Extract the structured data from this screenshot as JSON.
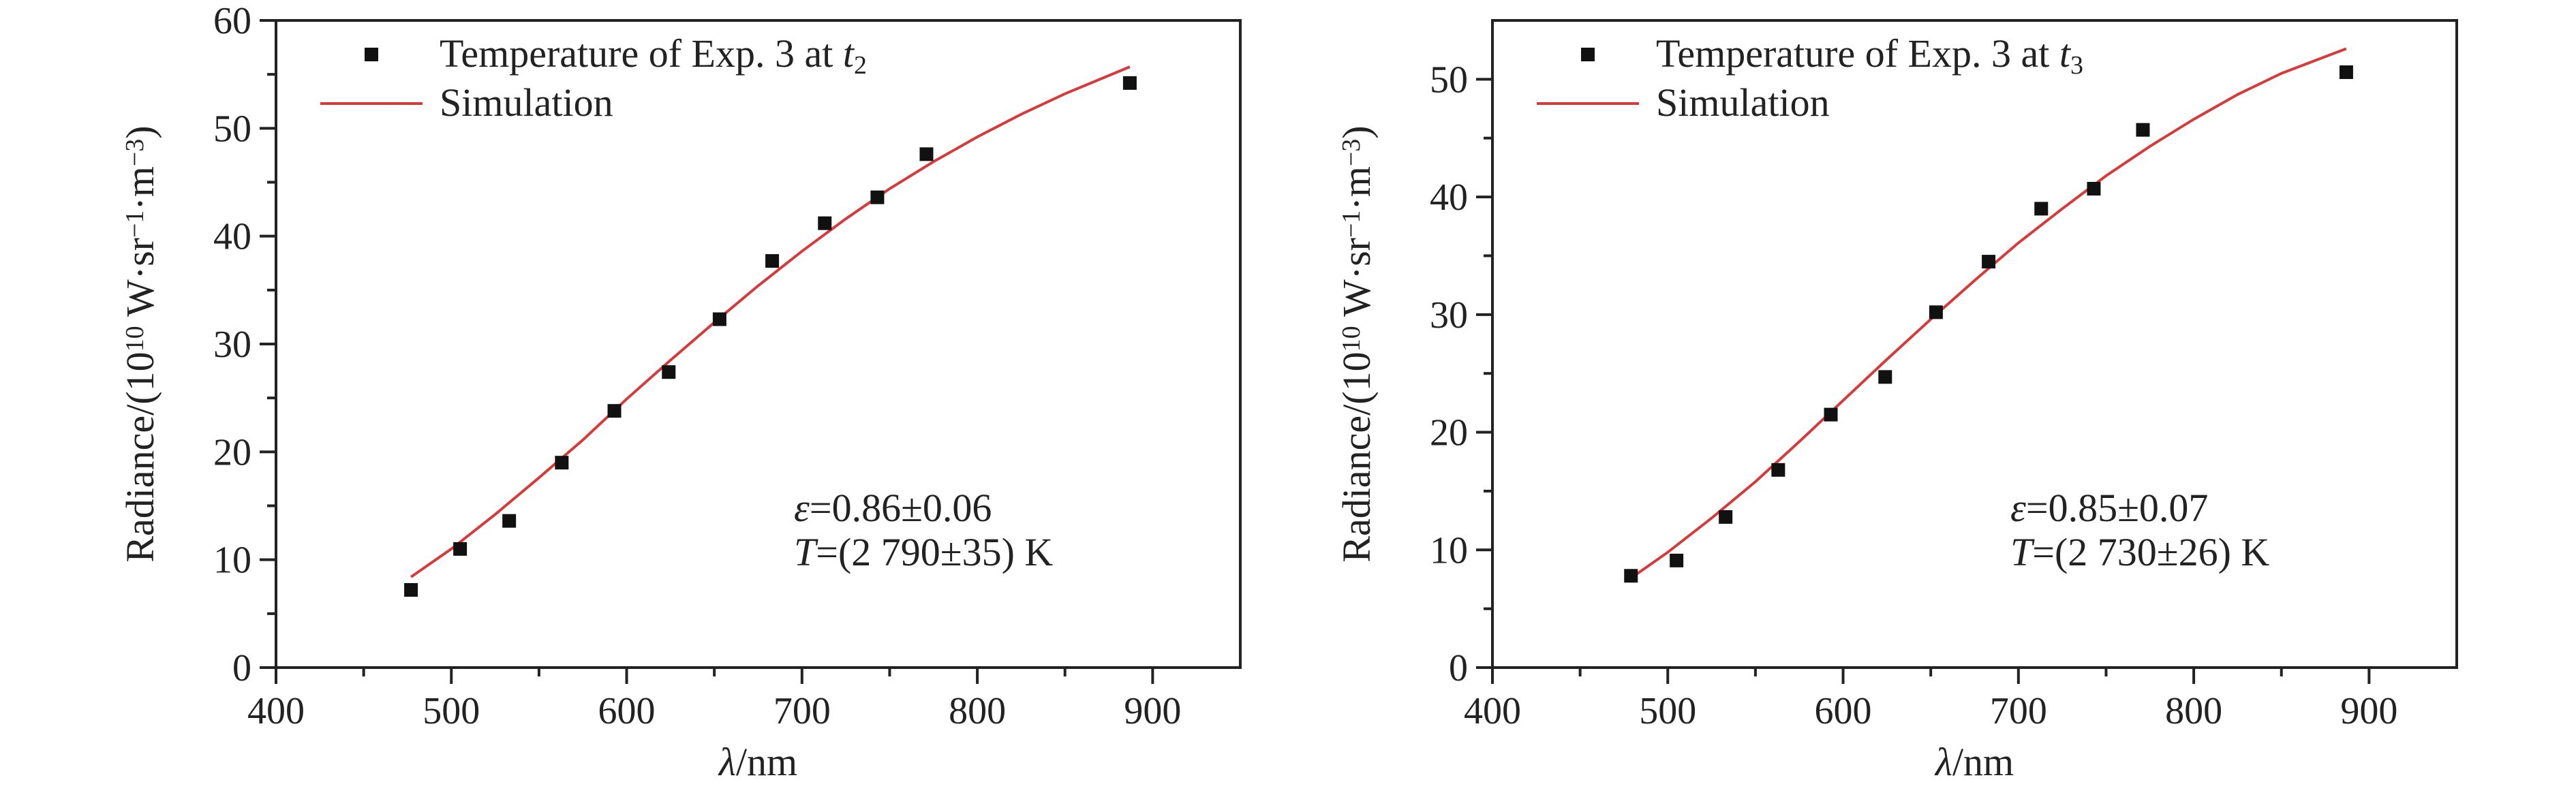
{
  "chart_data": [
    {
      "type": "scatter",
      "title": "",
      "xlabel_symbol": "λ",
      "xlabel_unit": "/nm",
      "ylabel_base": "Radiance/(10",
      "ylabel_exp10": "10",
      "ylabel_unit": " W·sr",
      "ylabel_exp1": "−1",
      "ylabel_dot": "·m",
      "ylabel_exp3": "−3",
      "ylabel_close": ")",
      "xlim": [
        400,
        950
      ],
      "ylim": [
        0,
        60
      ],
      "xticks": [
        400,
        500,
        600,
        700,
        800,
        900
      ],
      "yticks": [
        0,
        10,
        20,
        30,
        40,
        50,
        60
      ],
      "legend_position": "top-left",
      "legend": {
        "points_label": "Temperature of Exp. 3 at ",
        "points_var": "t",
        "points_sub": "2",
        "line_label": "Simulation"
      },
      "annotation": {
        "eps_symbol": "ε",
        "eps_value": "=0.86±0.06",
        "t_symbol": "T",
        "t_value": "=(2 790±35) K"
      },
      "series": [
        {
          "kind": "points",
          "color": "#111111",
          "x": [
            477,
            505,
            533,
            563,
            593,
            624,
            653,
            683,
            713,
            743,
            771,
            887
          ],
          "y": [
            7.2,
            11.0,
            13.6,
            19.0,
            23.8,
            27.4,
            32.3,
            37.7,
            41.2,
            43.6,
            47.6,
            54.2
          ]
        },
        {
          "kind": "line",
          "color": "#d63a3a",
          "x": [
            477,
            500,
            525,
            550,
            575,
            600,
            625,
            650,
            675,
            700,
            725,
            750,
            775,
            800,
            825,
            850,
            887
          ],
          "y": [
            8.4,
            11.0,
            14.2,
            17.6,
            21.1,
            24.9,
            28.5,
            32.0,
            35.4,
            38.6,
            41.6,
            44.4,
            46.9,
            49.2,
            51.3,
            53.2,
            55.7
          ]
        }
      ]
    },
    {
      "type": "scatter",
      "title": "",
      "xlabel_symbol": "λ",
      "xlabel_unit": "/nm",
      "ylabel_base": "Radiance/(10",
      "ylabel_exp10": "10",
      "ylabel_unit": " W·sr",
      "ylabel_exp1": "−1",
      "ylabel_dot": "·m",
      "ylabel_exp3": "−3",
      "ylabel_close": ")",
      "xlim": [
        400,
        950
      ],
      "ylim": [
        0,
        55
      ],
      "xticks": [
        400,
        500,
        600,
        700,
        800,
        900
      ],
      "yticks": [
        0,
        10,
        20,
        30,
        40,
        50
      ],
      "legend_position": "top-left",
      "legend": {
        "points_label": "Temperature of Exp. 3 at ",
        "points_var": "t",
        "points_sub": "3",
        "line_label": "Simulation"
      },
      "annotation": {
        "eps_symbol": "ε",
        "eps_value": "=0.85±0.07",
        "t_symbol": "T",
        "t_value": "=(2 730±26) K"
      },
      "series": [
        {
          "kind": "points",
          "color": "#111111",
          "x": [
            479,
            505,
            533,
            563,
            593,
            624,
            653,
            683,
            713,
            743,
            771,
            887
          ],
          "y": [
            7.8,
            9.1,
            12.8,
            16.8,
            21.5,
            24.7,
            30.2,
            34.5,
            39.0,
            40.7,
            45.7,
            50.6
          ]
        },
        {
          "kind": "line",
          "color": "#d63a3a",
          "x": [
            479,
            500,
            525,
            550,
            575,
            600,
            625,
            650,
            675,
            700,
            725,
            750,
            775,
            800,
            825,
            850,
            887
          ],
          "y": [
            7.6,
            9.8,
            12.7,
            15.8,
            19.2,
            22.7,
            26.2,
            29.6,
            32.9,
            36.1,
            39.0,
            41.8,
            44.3,
            46.6,
            48.7,
            50.5,
            52.6
          ]
        }
      ]
    }
  ]
}
